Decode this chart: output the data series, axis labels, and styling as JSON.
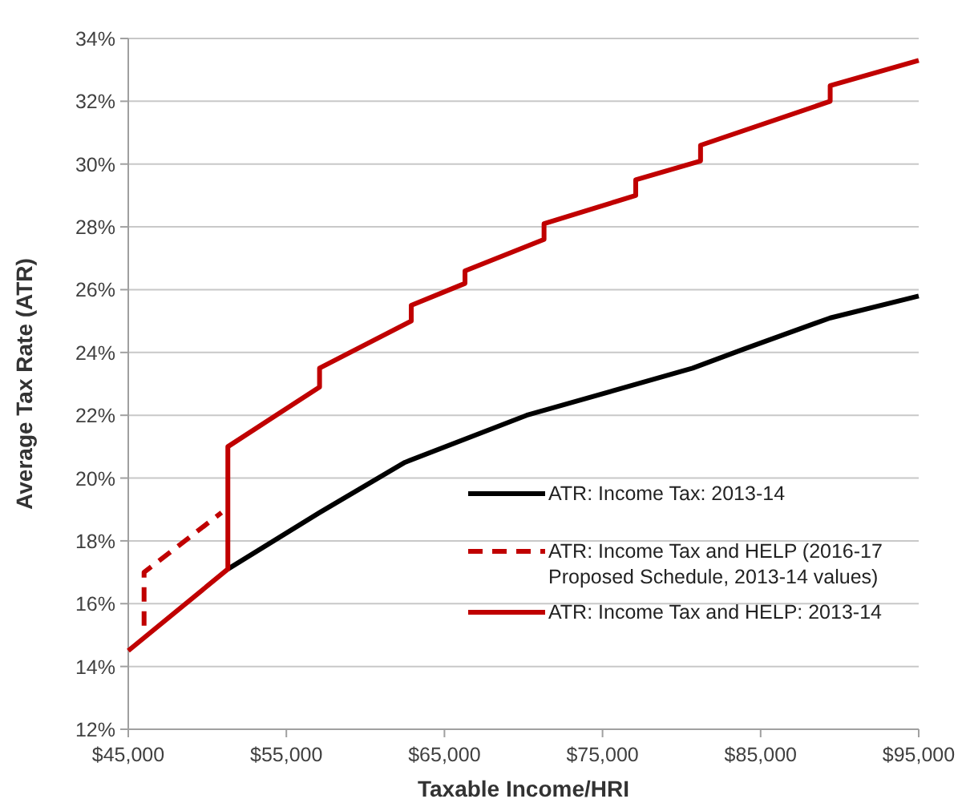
{
  "chart_data": {
    "type": "line",
    "xlabel": "Taxable Income/HRI",
    "ylabel": "Average Tax Rate (ATR)",
    "xlim": [
      45000,
      95000
    ],
    "xticks": [
      {
        "value": 45000,
        "label": "$45,000"
      },
      {
        "value": 55000,
        "label": "$55,000"
      },
      {
        "value": 65000,
        "label": "$65,000"
      },
      {
        "value": 75000,
        "label": "$75,000"
      },
      {
        "value": 85000,
        "label": "$85,000"
      },
      {
        "value": 95000,
        "label": "$95,000"
      }
    ],
    "ylim": [
      12,
      34
    ],
    "yticks": [
      {
        "value": 12,
        "label": "12%"
      },
      {
        "value": 14,
        "label": "14%"
      },
      {
        "value": 16,
        "label": "16%"
      },
      {
        "value": 18,
        "label": "18%"
      },
      {
        "value": 20,
        "label": "20%"
      },
      {
        "value": 22,
        "label": "22%"
      },
      {
        "value": 24,
        "label": "24%"
      },
      {
        "value": 26,
        "label": "26%"
      },
      {
        "value": 28,
        "label": "28%"
      },
      {
        "value": 30,
        "label": "30%"
      },
      {
        "value": 32,
        "label": "32%"
      },
      {
        "value": 34,
        "label": "34%"
      }
    ],
    "grid": "y",
    "legend": "right",
    "series": [
      {
        "name": "ATR: Income Tax: 2013-14",
        "color": "#000000",
        "line_style": "solid",
        "x": [
          51300,
          57100,
          62500,
          70200,
          80700,
          83900,
          89400,
          95000
        ],
        "values": [
          17.1,
          18.9,
          20.5,
          22.0,
          23.5,
          24.1,
          25.1,
          25.8
        ]
      },
      {
        "name": "ATR: Income Tax and HELP (2016-17 Proposed Schedule, 2013-14 values)",
        "color": "#c00000",
        "line_style": "dashed",
        "x": [
          46000,
          46000,
          50900
        ],
        "values": [
          15.3,
          17.0,
          18.9
        ]
      },
      {
        "name": "ATR: Income Tax and HELP: 2013-14",
        "color": "#c00000",
        "line_style": "solid",
        "x": [
          45000,
          51300,
          51300,
          57100,
          57100,
          62900,
          62900,
          66300,
          66300,
          71300,
          71300,
          77100,
          77100,
          81200,
          81200,
          89400,
          89400,
          95000
        ],
        "values": [
          14.5,
          17.1,
          21.0,
          22.9,
          23.5,
          25.0,
          25.5,
          26.2,
          26.6,
          27.6,
          28.1,
          29.0,
          29.5,
          30.1,
          30.6,
          32.0,
          32.5,
          33.3
        ]
      }
    ]
  }
}
